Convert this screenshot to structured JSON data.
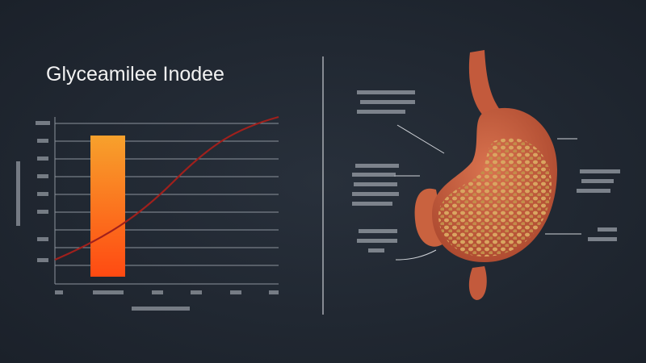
{
  "title": "Glyceamilee Inodee"
}
